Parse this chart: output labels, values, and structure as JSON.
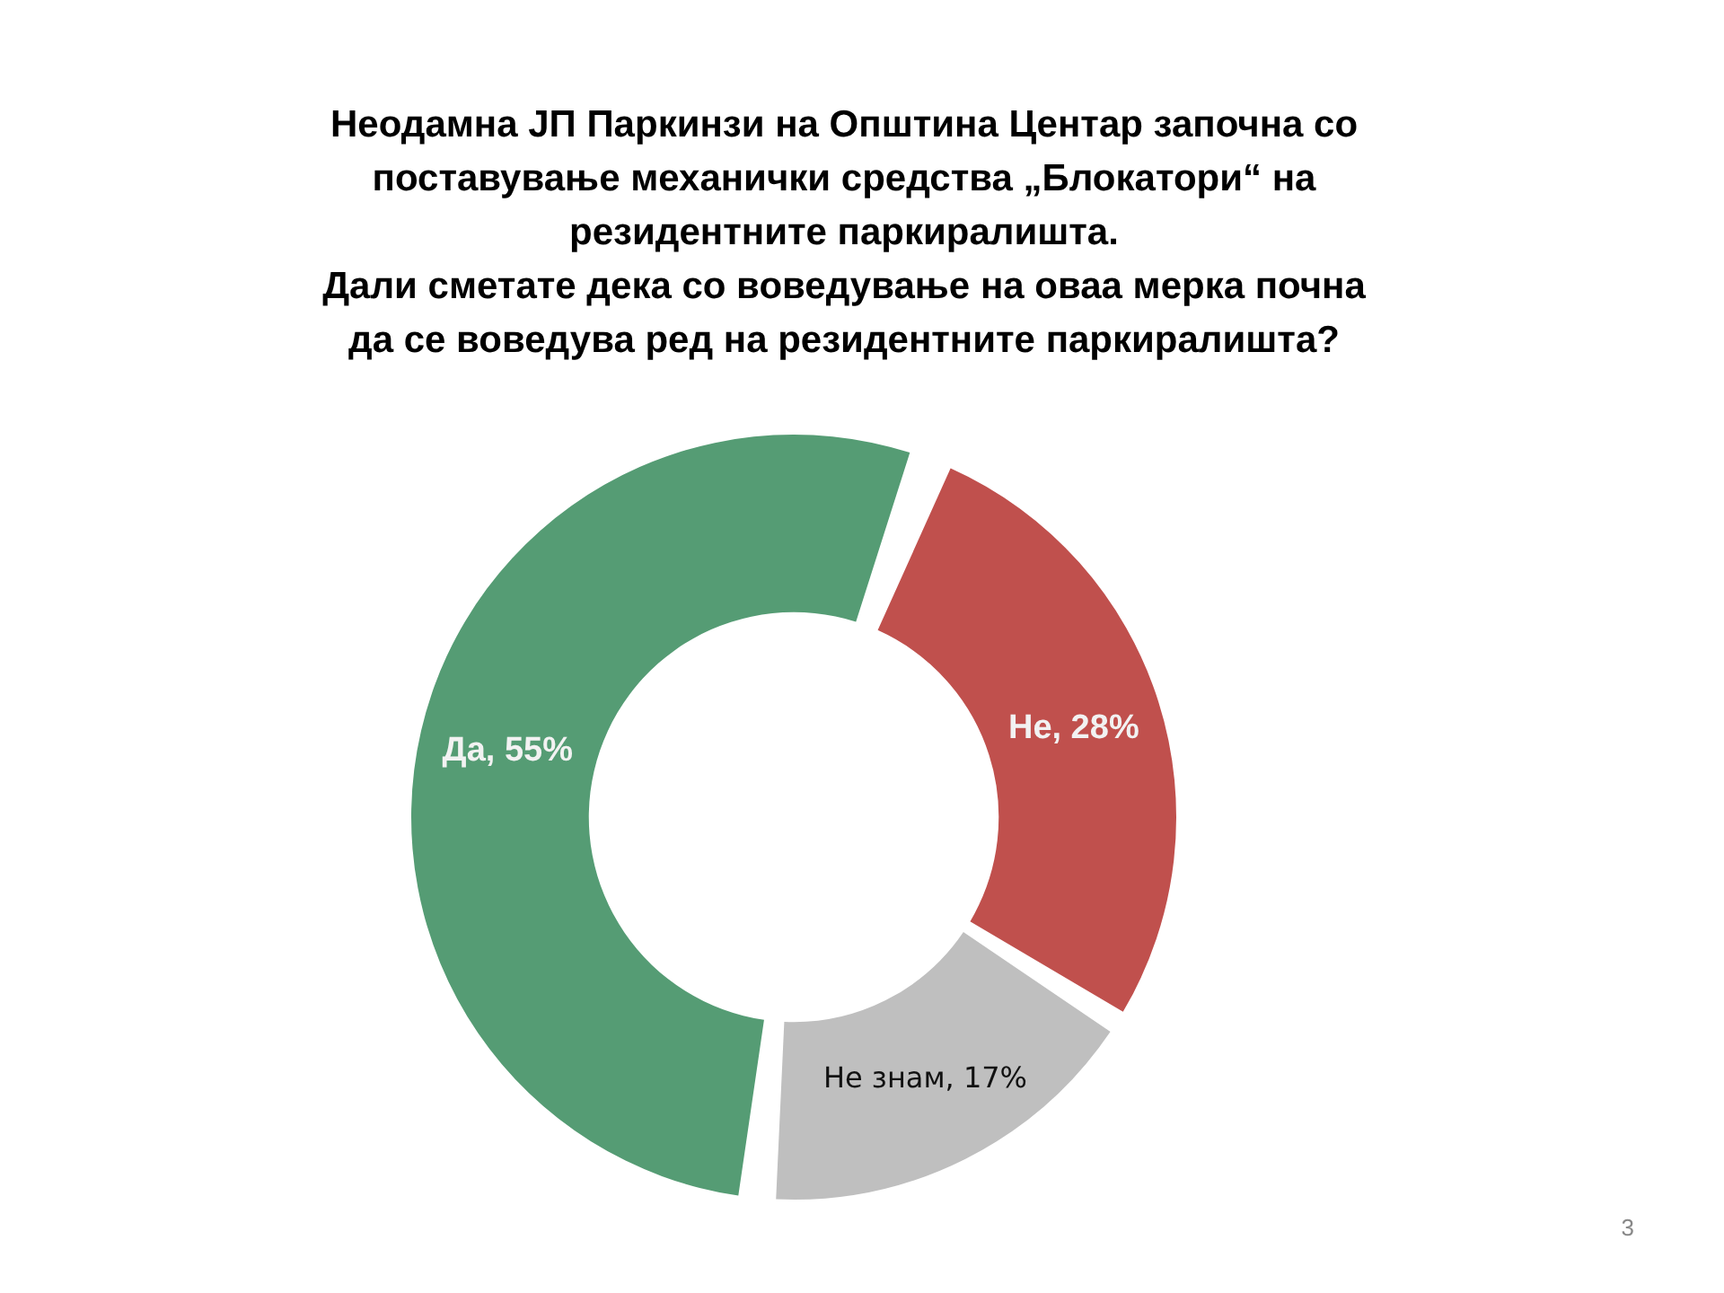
{
  "chart_data": {
    "type": "donut",
    "title": "Неодамна ЈП Паркинзи на Општина Центар започна со\nпоставување механички средства „Блокатори“ на\nрезидентните паркиралишта.\nДали сметате дека со воведување на оваа мерка почна\nда се воведува ред на резидентните паркиралишта?",
    "categories": [
      "Да",
      "Не",
      "Не знам"
    ],
    "values": [
      55,
      28,
      17
    ],
    "colors": [
      "#559c74",
      "#c0504d",
      "#bfbfbf"
    ],
    "value_labels": [
      "55%",
      "28%",
      "17%"
    ],
    "legend": false,
    "annotations": [
      "3"
    ]
  }
}
